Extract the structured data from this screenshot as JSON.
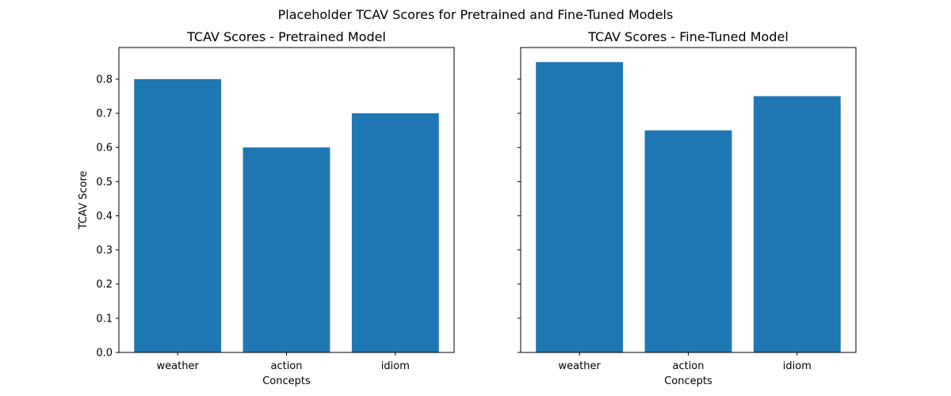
{
  "figure": {
    "suptitle": "Placeholder TCAV Scores for Pretrained and Fine-Tuned Models",
    "bar_color": "#1f77b4"
  },
  "chart_data": [
    {
      "type": "bar",
      "title": "TCAV Scores - Pretrained Model",
      "categories": [
        "weather",
        "action",
        "idiom"
      ],
      "values": [
        0.8,
        0.6,
        0.7
      ],
      "xlabel": "Concepts",
      "ylabel": "TCAV Score",
      "ylim": [
        0,
        0.8925
      ],
      "yticks": [
        "0.0",
        "0.1",
        "0.2",
        "0.3",
        "0.4",
        "0.5",
        "0.6",
        "0.7",
        "0.8"
      ],
      "grid": false,
      "legend": "none"
    },
    {
      "type": "bar",
      "title": "TCAV Scores - Fine-Tuned Model",
      "categories": [
        "weather",
        "action",
        "idiom"
      ],
      "values": [
        0.85,
        0.65,
        0.75
      ],
      "xlabel": "Concepts",
      "ylabel": "",
      "ylim": [
        0,
        0.8925
      ],
      "yticks": [],
      "grid": false,
      "legend": "none"
    }
  ]
}
